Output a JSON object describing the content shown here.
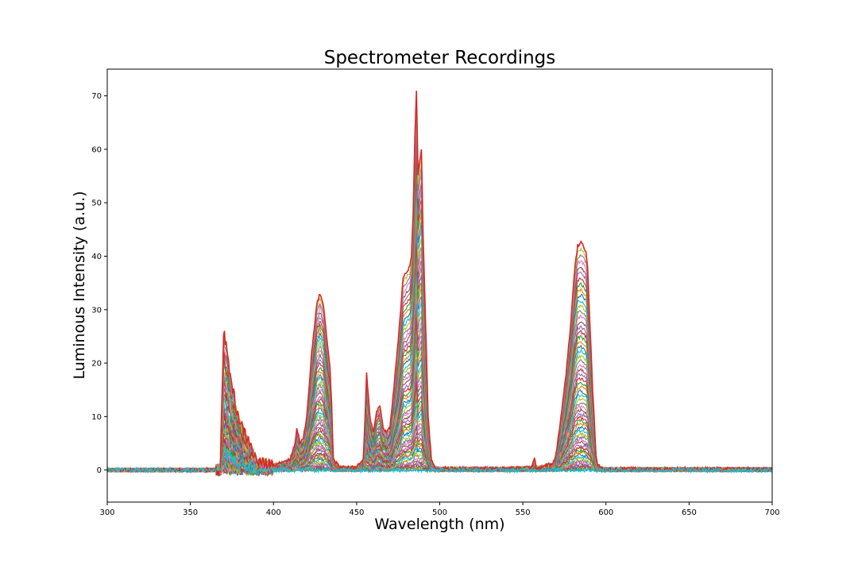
{
  "chart_data": {
    "type": "line",
    "title": "Spectrometer Recordings",
    "xlabel": "Wavelength (nm)",
    "ylabel": "Luminous Intensity (a.u.)",
    "xlim": [
      300,
      700
    ],
    "ylim": [
      -6,
      75
    ],
    "x_ticks": [
      300,
      350,
      400,
      450,
      500,
      550,
      600,
      650,
      700
    ],
    "y_ticks": [
      0,
      10,
      20,
      30,
      40,
      50,
      60,
      70
    ],
    "grid": false,
    "legend": "none",
    "series_count_note": "",
    "series_palette": [
      "#1f77b4",
      "#ff7f0e",
      "#2ca02c",
      "#d62728",
      "#9467bd",
      "#8c564b",
      "#e377c2",
      "#7f7f7f",
      "#bcbd22",
      "#17becf"
    ],
    "envelope": {
      "x": [
        300,
        368,
        369,
        370,
        372,
        375,
        378,
        381,
        384,
        387,
        390,
        400,
        410,
        413,
        414,
        416,
        418,
        420,
        423,
        426,
        428,
        430,
        432,
        434,
        435,
        436,
        440,
        450,
        454,
        455,
        456,
        458,
        460,
        462,
        464,
        465,
        466,
        468,
        470,
        472,
        475,
        478,
        480,
        482,
        483,
        484,
        485,
        486,
        487,
        488,
        489,
        490,
        492,
        493,
        495,
        497,
        500,
        520,
        540,
        555,
        557,
        558,
        560,
        565,
        568,
        570,
        573,
        576,
        579,
        581,
        583,
        585,
        586,
        588,
        589,
        590,
        592,
        594,
        595,
        597,
        600,
        620,
        650,
        680,
        700
      ],
      "y": [
        0,
        0,
        14,
        26,
        22,
        16,
        11,
        8,
        6,
        4,
        1.5,
        1,
        2,
        5,
        8,
        5,
        6,
        10,
        22,
        31,
        33,
        31,
        25,
        19,
        12,
        2,
        0.5,
        0.5,
        2,
        9,
        18,
        10,
        7,
        11,
        12,
        10,
        8,
        7,
        8,
        14,
        24,
        36,
        37,
        38,
        40,
        48,
        62,
        71,
        55,
        58,
        60,
        44,
        22,
        10,
        2,
        0.5,
        0.3,
        0.3,
        0.3,
        0.5,
        2,
        0.5,
        0.5,
        1,
        1,
        3,
        10,
        18,
        28,
        37,
        42,
        42.5,
        42,
        41,
        38,
        30,
        15,
        3,
        1,
        0.4,
        0.2,
        0.2,
        0.2,
        0.2,
        0.2
      ]
    },
    "top_series_color": "#d62728",
    "bottom_series_color": "#17becf"
  }
}
